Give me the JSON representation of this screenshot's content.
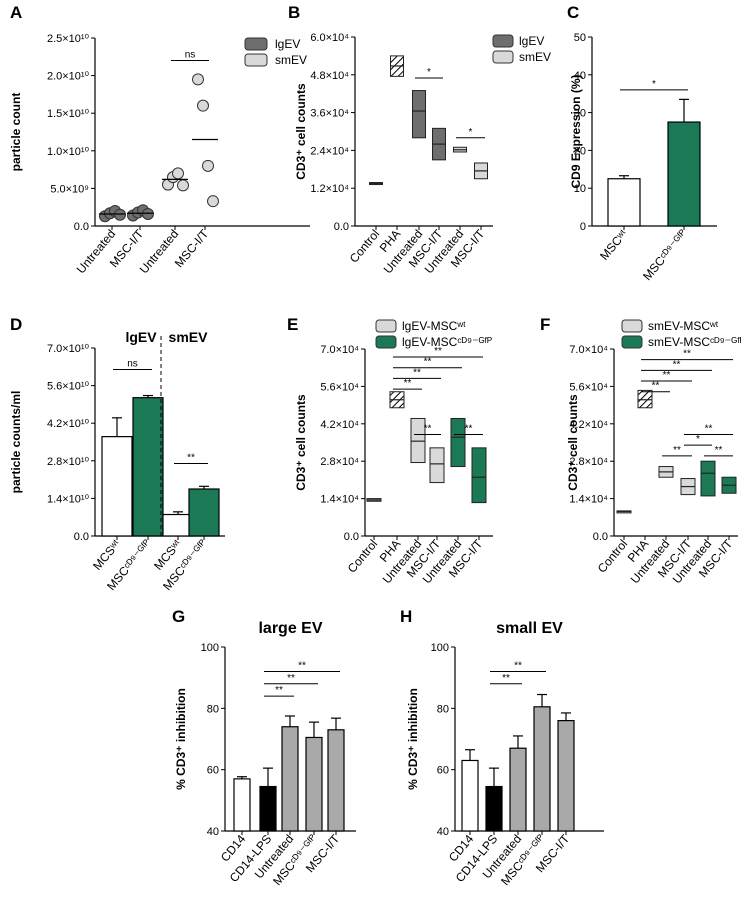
{
  "colors": {
    "green": "#1b7a55",
    "lgGray": "#6e6e6e",
    "smGray": "#d9d9d9",
    "gray": "#a9a9a9",
    "black": "#000000",
    "white": "#ffffff"
  },
  "chart_data": [
    {
      "id": "A",
      "type": "scatter",
      "letter": "A",
      "ylabel": "particle count",
      "yticks": [
        "0.0",
        "5.0×10⁹",
        "1.0×10¹⁰",
        "1.5×10¹⁰",
        "2.0×10¹⁰",
        "2.5×10¹⁰"
      ],
      "ylim": [
        0,
        25000000000
      ],
      "categories": [
        "Untreated",
        "MSC-I/T",
        "Untreated",
        "MSC-I/T"
      ],
      "legend": [
        "lgEV",
        "smEV"
      ],
      "series": [
        {
          "name": "lgEV",
          "points": [
            [
              0,
              1300000000
            ],
            [
              0,
              1700000000
            ],
            [
              0,
              2000000000
            ],
            [
              0,
              1500000000
            ],
            [
              1,
              1400000000
            ],
            [
              1,
              1800000000
            ],
            [
              1,
              2100000000
            ],
            [
              1,
              1600000000
            ]
          ],
          "means": [
            1600000000,
            1700000000
          ]
        },
        {
          "name": "smEV",
          "points": [
            [
              2,
              5500000000
            ],
            [
              2,
              6500000000
            ],
            [
              2,
              7000000000
            ],
            [
              2,
              5400000000
            ],
            [
              3,
              19500000000
            ],
            [
              3,
              16000000000
            ],
            [
              3,
              8000000000
            ],
            [
              3,
              3300000000
            ]
          ],
          "means": [
            6200000000,
            11500000000
          ]
        }
      ],
      "annotations": [
        {
          "text": "ns",
          "from": 2,
          "to": 3,
          "y": 22000000000
        }
      ]
    },
    {
      "id": "B",
      "type": "box",
      "letter": "B",
      "ylabel": "CD3⁺ cell counts",
      "yticks": [
        "0.0",
        "1.2×10⁴",
        "2.4×10⁴",
        "3.6×10⁴",
        "4.8×10⁴",
        "6.0×10⁴"
      ],
      "ylim": [
        0,
        60000
      ],
      "categories": [
        "Control",
        "PHA",
        "Untreated",
        "MSC-I/T",
        "Untreated",
        "MSC-I/T"
      ],
      "legend": [
        "lgEV",
        "smEV"
      ],
      "boxes": [
        {
          "cat": 0,
          "min": 13200,
          "max": 13800,
          "med": 13500,
          "fill": "gray"
        },
        {
          "cat": 1,
          "min": 47500,
          "max": 54000,
          "med": 50800,
          "fill": "hatch"
        },
        {
          "cat": 2,
          "min": 28000,
          "max": 43000,
          "med": 36500,
          "fill": "lgGray"
        },
        {
          "cat": 3,
          "min": 21000,
          "max": 31000,
          "med": 26000,
          "fill": "lgGray"
        },
        {
          "cat": 4,
          "min": 23500,
          "max": 25000,
          "med": 24200,
          "fill": "smGray"
        },
        {
          "cat": 5,
          "min": 15000,
          "max": 20000,
          "med": 17500,
          "fill": "smGray"
        }
      ],
      "annotations": [
        {
          "text": "*",
          "from": 2,
          "to": 3,
          "y": 47000
        },
        {
          "text": "*",
          "from": 4,
          "to": 5,
          "y": 28000
        }
      ]
    },
    {
      "id": "C",
      "type": "bar",
      "letter": "C",
      "ylabel": "CD9 Expression (%)",
      "yticks": [
        "0",
        "10",
        "20",
        "30",
        "40",
        "50"
      ],
      "ylim": [
        0,
        50
      ],
      "categories": [
        "MSCʷᵗ",
        "MSCᶜᴰ⁹⁻ᴳᶠᴾ"
      ],
      "values": [
        12.5,
        27.5
      ],
      "errors": [
        0.8,
        6
      ],
      "fills": [
        "white",
        "green"
      ],
      "annotations": [
        {
          "text": "*",
          "from": 0,
          "to": 1,
          "y": 36
        }
      ]
    },
    {
      "id": "D",
      "type": "bar",
      "letter": "D",
      "ylabel": "particle counts/ml",
      "yticks": [
        "0.0",
        "1.4×10¹⁰",
        "2.8×10¹⁰",
        "4.2×10¹⁰",
        "5.6×10¹⁰",
        "7.0×10¹⁰"
      ],
      "ylim": [
        0,
        70000000000
      ],
      "groups": [
        "lgEV",
        "smEV"
      ],
      "categories": [
        "MCSʷᵗ",
        "MSCᶜᴰ⁹⁻ᴳᶠᴾ",
        "MCSʷᵗ",
        "MSCᶜᴰ⁹⁻ᴳᶠᴾ"
      ],
      "values": [
        37000000000,
        51500000000,
        8000000000,
        17500000000
      ],
      "errors": [
        7000000000,
        800000000,
        1000000000,
        1000000000
      ],
      "fills": [
        "white",
        "green",
        "white",
        "green"
      ],
      "annotations": [
        {
          "text": "ns",
          "from": 0,
          "to": 1,
          "y": 62000000000
        },
        {
          "text": "**",
          "from": 2,
          "to": 3,
          "y": 27000000000
        }
      ]
    },
    {
      "id": "E",
      "type": "box",
      "letter": "E",
      "ylabel": "CD3⁺ cell counts",
      "yticks": [
        "0.0",
        "1.4×10⁴",
        "2.8×10⁴",
        "4.2×10⁴",
        "5.6×10⁴",
        "7.0×10⁴"
      ],
      "ylim": [
        0,
        70000
      ],
      "categories": [
        "Control",
        "PHA",
        "Untreated",
        "MSC-I/T",
        "Untreated",
        "MSC-I/T"
      ],
      "legend": [
        "lgEV-MSCʷᵗ",
        "lgEV-MSCᶜᴰ⁹⁻ᴳᶠᴾ"
      ],
      "boxes": [
        {
          "cat": 0,
          "min": 13000,
          "max": 14000,
          "med": 13500,
          "fill": "gray"
        },
        {
          "cat": 1,
          "min": 48000,
          "max": 54000,
          "med": 51000,
          "fill": "hatch"
        },
        {
          "cat": 2,
          "min": 27500,
          "max": 44000,
          "med": 35500,
          "fill": "smGray"
        },
        {
          "cat": 3,
          "min": 20000,
          "max": 33000,
          "med": 27000,
          "fill": "smGray"
        },
        {
          "cat": 4,
          "min": 26000,
          "max": 44000,
          "med": 37000,
          "fill": "green"
        },
        {
          "cat": 5,
          "min": 12500,
          "max": 33000,
          "med": 22000,
          "fill": "green"
        }
      ],
      "annotations": [
        {
          "text": "**",
          "from": 1,
          "to": 5,
          "y": 67000
        },
        {
          "text": "**",
          "from": 1,
          "to": 4,
          "y": 63000
        },
        {
          "text": "**",
          "from": 1,
          "to": 3,
          "y": 59000
        },
        {
          "text": "**",
          "from": 1,
          "to": 2,
          "y": 55000
        },
        {
          "text": "**",
          "from": 2,
          "to": 3,
          "y": 38000
        },
        {
          "text": "**",
          "from": 4,
          "to": 5,
          "y": 38000
        }
      ]
    },
    {
      "id": "F",
      "type": "box",
      "letter": "F",
      "ylabel": "CD3⁺ cell counts",
      "yticks": [
        "0.0",
        "1.4×10⁴",
        "2.8×10⁴",
        "4.2×10⁴",
        "5.6×10⁴",
        "7.0×10⁴"
      ],
      "ylim": [
        0,
        70000
      ],
      "categories": [
        "Control",
        "PHA",
        "Untreated",
        "MSC-I/T",
        "Untreated",
        "MSC-I/T"
      ],
      "legend": [
        "smEV-MSCʷᵗ",
        "smEV-MSCᶜᴰ⁹⁻ᴳᶠᴾ"
      ],
      "boxes": [
        {
          "cat": 0,
          "min": 9000,
          "max": 9400,
          "med": 9200,
          "fill": "gray"
        },
        {
          "cat": 1,
          "min": 48000,
          "max": 54500,
          "med": 51000,
          "fill": "hatch"
        },
        {
          "cat": 2,
          "min": 22000,
          "max": 26000,
          "med": 24000,
          "fill": "smGray"
        },
        {
          "cat": 3,
          "min": 15500,
          "max": 21500,
          "med": 18500,
          "fill": "smGray"
        },
        {
          "cat": 4,
          "min": 15000,
          "max": 28000,
          "med": 23500,
          "fill": "green"
        },
        {
          "cat": 5,
          "min": 16000,
          "max": 22000,
          "med": 19000,
          "fill": "green"
        }
      ],
      "annotations": [
        {
          "text": "**",
          "from": 1,
          "to": 5,
          "y": 66000
        },
        {
          "text": "**",
          "from": 1,
          "to": 4,
          "y": 62000
        },
        {
          "text": "**",
          "from": 1,
          "to": 3,
          "y": 58000
        },
        {
          "text": "**",
          "from": 1,
          "to": 2,
          "y": 54000
        },
        {
          "text": "**",
          "from": 3,
          "to": 5,
          "y": 38000
        },
        {
          "text": "*",
          "from": 3,
          "to": 4,
          "y": 34000
        },
        {
          "text": "**",
          "from": 2,
          "to": 3,
          "y": 30000
        },
        {
          "text": "**",
          "from": 4,
          "to": 5,
          "y": 30000
        }
      ]
    },
    {
      "id": "G",
      "type": "bar",
      "letter": "G",
      "title": "large EV",
      "ylabel": "% CD3⁺ inhibition",
      "yticks": [
        "40",
        "60",
        "80",
        "100"
      ],
      "ylim": [
        40,
        100
      ],
      "categories": [
        "CD14",
        "CD14-LPS",
        "Untreated",
        "MSCᶜᴰ⁹⁻ᴳᶠᴾ",
        "MSC-I/T"
      ],
      "values": [
        57,
        54.5,
        74,
        70.5,
        73
      ],
      "errors": [
        0.7,
        6,
        3.5,
        5,
        3.8
      ],
      "fills": [
        "white",
        "black",
        "gray",
        "gray",
        "gray"
      ],
      "annotations": [
        {
          "text": "**",
          "from": 1,
          "to": 4,
          "y": 92
        },
        {
          "text": "**",
          "from": 1,
          "to": 3,
          "y": 88
        },
        {
          "text": "**",
          "from": 1,
          "to": 2,
          "y": 84
        }
      ]
    },
    {
      "id": "H",
      "type": "bar",
      "letter": "H",
      "title": "small EV",
      "ylabel": "% CD3⁺ inhibition",
      "yticks": [
        "40",
        "60",
        "80",
        "100"
      ],
      "ylim": [
        40,
        100
      ],
      "categories": [
        "CD14",
        "CD14-LPS",
        "Untreated",
        "MSCᶜᴰ⁹⁻ᴳᶠᴾ",
        "MSC-I/T"
      ],
      "values": [
        63,
        54.5,
        67,
        80.5,
        76
      ],
      "errors": [
        3.5,
        6,
        4,
        4,
        2.5
      ],
      "fills": [
        "white",
        "black",
        "gray",
        "gray",
        "gray"
      ],
      "annotations": [
        {
          "text": "**",
          "from": 1,
          "to": 3,
          "y": 92
        },
        {
          "text": "**",
          "from": 1,
          "to": 2,
          "y": 88
        }
      ]
    }
  ]
}
